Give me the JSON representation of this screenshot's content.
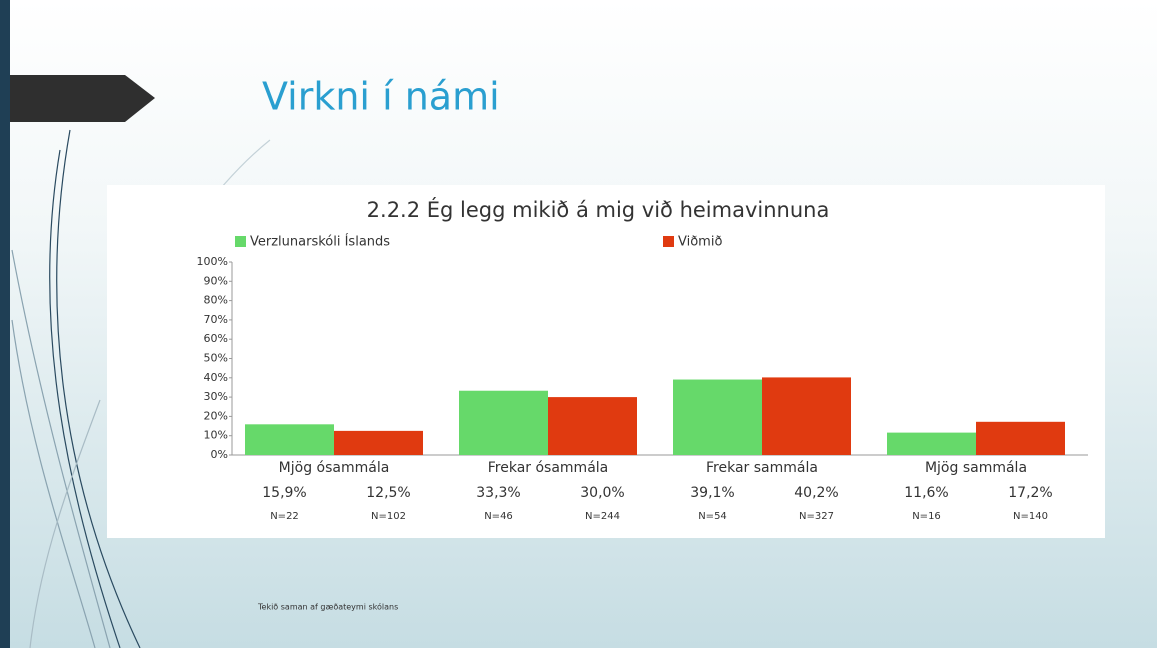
{
  "slide_title": "Virkni í námi",
  "footer": "Tekið saman af gæðateymi skólans",
  "chart_data": {
    "type": "bar",
    "title": "2.2.2 Ég legg mikið á mig við heimavinnuna",
    "categories": [
      "Mjög ósammála",
      "Frekar ósammála",
      "Frekar sammála",
      "Mjög sammála"
    ],
    "series": [
      {
        "name": "Verzlunarskóli Íslands",
        "color": "#66d96a",
        "values": [
          15.9,
          33.3,
          39.1,
          11.6
        ],
        "value_labels": [
          "15,9%",
          "33,3%",
          "39,1%",
          "11,6%"
        ],
        "n_labels": [
          "N=22",
          "N=46",
          "N=54",
          "N=16"
        ]
      },
      {
        "name": "Viðmið",
        "color": "#e03a10",
        "values": [
          12.5,
          30.0,
          40.2,
          17.2
        ],
        "value_labels": [
          "12,5%",
          "30,0%",
          "40,2%",
          "17,2%"
        ],
        "n_labels": [
          "N=102",
          "N=244",
          "N=327",
          "N=140"
        ]
      }
    ],
    "ylim": [
      0,
      100
    ],
    "yticks": [
      {
        "value": 0,
        "label": "0%"
      },
      {
        "value": 10,
        "label": "10%"
      },
      {
        "value": 20,
        "label": "20%"
      },
      {
        "value": 30,
        "label": "30%"
      },
      {
        "value": 40,
        "label": "40%"
      },
      {
        "value": 50,
        "label": "50%"
      },
      {
        "value": 60,
        "label": "60%"
      },
      {
        "value": 70,
        "label": "70%"
      },
      {
        "value": 80,
        "label": "80%"
      },
      {
        "value": 90,
        "label": "90%"
      },
      {
        "value": 100,
        "label": "100%"
      }
    ],
    "grid": false
  }
}
